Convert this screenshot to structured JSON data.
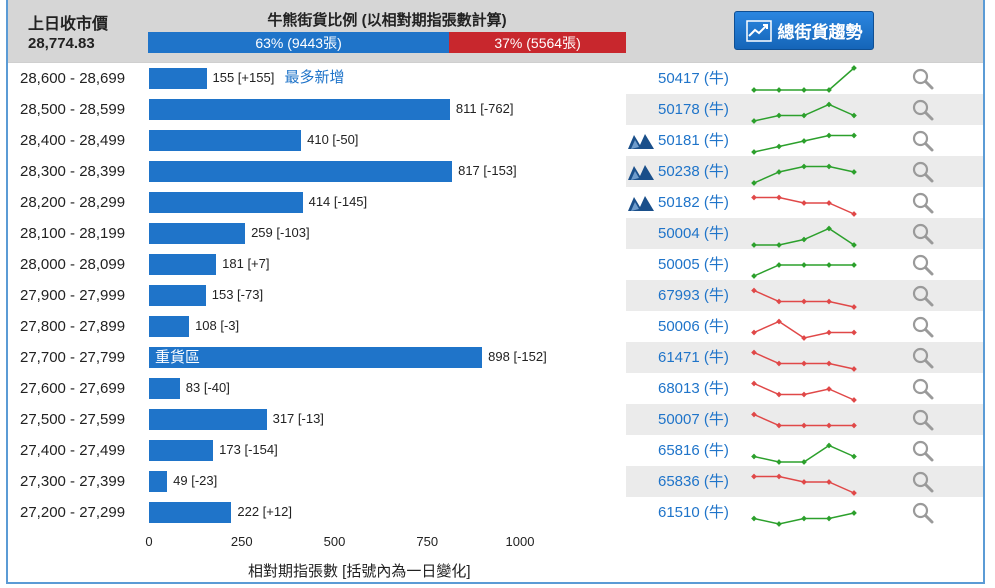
{
  "header": {
    "prev_close_label": "上日收市價",
    "prev_close_value": "28,774.83",
    "ratio_title": "牛熊街貨比例 (以相對期指張數計算)",
    "bull_text": "63% (9443張)",
    "bear_text": "37% (5564張)",
    "bull_pct": 63,
    "bear_pct": 37,
    "trend_button_label": "總街貨趨勢",
    "trend_icon": "trend-chart-icon"
  },
  "colors": {
    "bull": "#1f74c9",
    "bear": "#c8272d",
    "up_line": "#2ca02c",
    "down_line": "#e04848"
  },
  "chart_data": {
    "type": "bar",
    "title": "相對期指張數 [括號內為一日變化]",
    "xlabel": "相對期指張數 [括號內為一日變化]",
    "xlim": [
      0,
      1000
    ],
    "xticks": [
      "0",
      "250",
      "500",
      "750",
      "1000"
    ],
    "categories": [
      "28,600 - 28,699",
      "28,500 - 28,599",
      "28,400 - 28,499",
      "28,300 - 28,399",
      "28,200 - 28,299",
      "28,100 - 28,199",
      "28,000 - 28,099",
      "27,900 - 27,999",
      "27,800 - 27,899",
      "27,700 - 27,799",
      "27,600 - 27,699",
      "27,500 - 27,599",
      "27,400 - 27,499",
      "27,300 - 27,399",
      "27,200 - 27,299"
    ],
    "values": [
      155,
      811,
      410,
      817,
      414,
      259,
      181,
      153,
      108,
      898,
      83,
      317,
      173,
      49,
      222
    ],
    "labels": [
      "155 [+155]",
      "811 [-762]",
      "410 [-50]",
      "817 [-153]",
      "414 [-145]",
      "259 [-103]",
      "181 [+7]",
      "153 [-73]",
      "108 [-3]",
      "898 [-152]",
      "83 [-40]",
      "317 [-13]",
      "173 [-154]",
      "49 [-23]",
      "222 [+12]"
    ]
  },
  "rows": [
    {
      "note": "最多新增",
      "inbar": "",
      "code": "50417 (牛)",
      "warning": false,
      "trend": "up",
      "spark": [
        1,
        1,
        1,
        1,
        5
      ]
    },
    {
      "note": "",
      "inbar": "",
      "code": "50178 (牛)",
      "warning": false,
      "trend": "up",
      "spark": [
        1,
        2,
        2,
        4,
        2
      ]
    },
    {
      "note": "",
      "inbar": "",
      "code": "50181 (牛)",
      "warning": true,
      "trend": "up",
      "spark": [
        1,
        2,
        3,
        4,
        4
      ]
    },
    {
      "note": "",
      "inbar": "",
      "code": "50238 (牛)",
      "warning": true,
      "trend": "up",
      "spark": [
        1,
        3,
        4,
        4,
        3
      ]
    },
    {
      "note": "",
      "inbar": "",
      "code": "50182 (牛)",
      "warning": true,
      "trend": "down",
      "spark": [
        4,
        4,
        3,
        3,
        1
      ]
    },
    {
      "note": "",
      "inbar": "",
      "code": "50004 (牛)",
      "warning": false,
      "trend": "up",
      "spark": [
        1,
        1,
        2,
        4,
        1
      ]
    },
    {
      "note": "",
      "inbar": "",
      "code": "50005 (牛)",
      "warning": false,
      "trend": "up",
      "spark": [
        1,
        3,
        3,
        3,
        3
      ]
    },
    {
      "note": "",
      "inbar": "",
      "code": "67993 (牛)",
      "warning": false,
      "trend": "down",
      "spark": [
        4,
        2,
        2,
        2,
        1
      ]
    },
    {
      "note": "",
      "inbar": "",
      "code": "50006 (牛)",
      "warning": false,
      "trend": "down",
      "spark": [
        2,
        4,
        1,
        2,
        2
      ]
    },
    {
      "note": "",
      "inbar": "重貨區",
      "code": "61471 (牛)",
      "warning": false,
      "trend": "down",
      "spark": [
        4,
        2,
        2,
        2,
        1
      ]
    },
    {
      "note": "",
      "inbar": "",
      "code": "68013 (牛)",
      "warning": false,
      "trend": "down",
      "spark": [
        4,
        2,
        2,
        3,
        1
      ]
    },
    {
      "note": "",
      "inbar": "",
      "code": "50007 (牛)",
      "warning": false,
      "trend": "down",
      "spark": [
        4,
        2,
        2,
        2,
        2
      ]
    },
    {
      "note": "",
      "inbar": "",
      "code": "65816 (牛)",
      "warning": false,
      "trend": "up",
      "spark": [
        2,
        1,
        1,
        4,
        2
      ]
    },
    {
      "note": "",
      "inbar": "",
      "code": "65836 (牛)",
      "warning": false,
      "trend": "down",
      "spark": [
        4,
        4,
        3,
        3,
        1
      ]
    },
    {
      "note": "",
      "inbar": "",
      "code": "61510 (牛)",
      "warning": false,
      "trend": "up",
      "spark": [
        2,
        1,
        2,
        2,
        3
      ]
    }
  ]
}
